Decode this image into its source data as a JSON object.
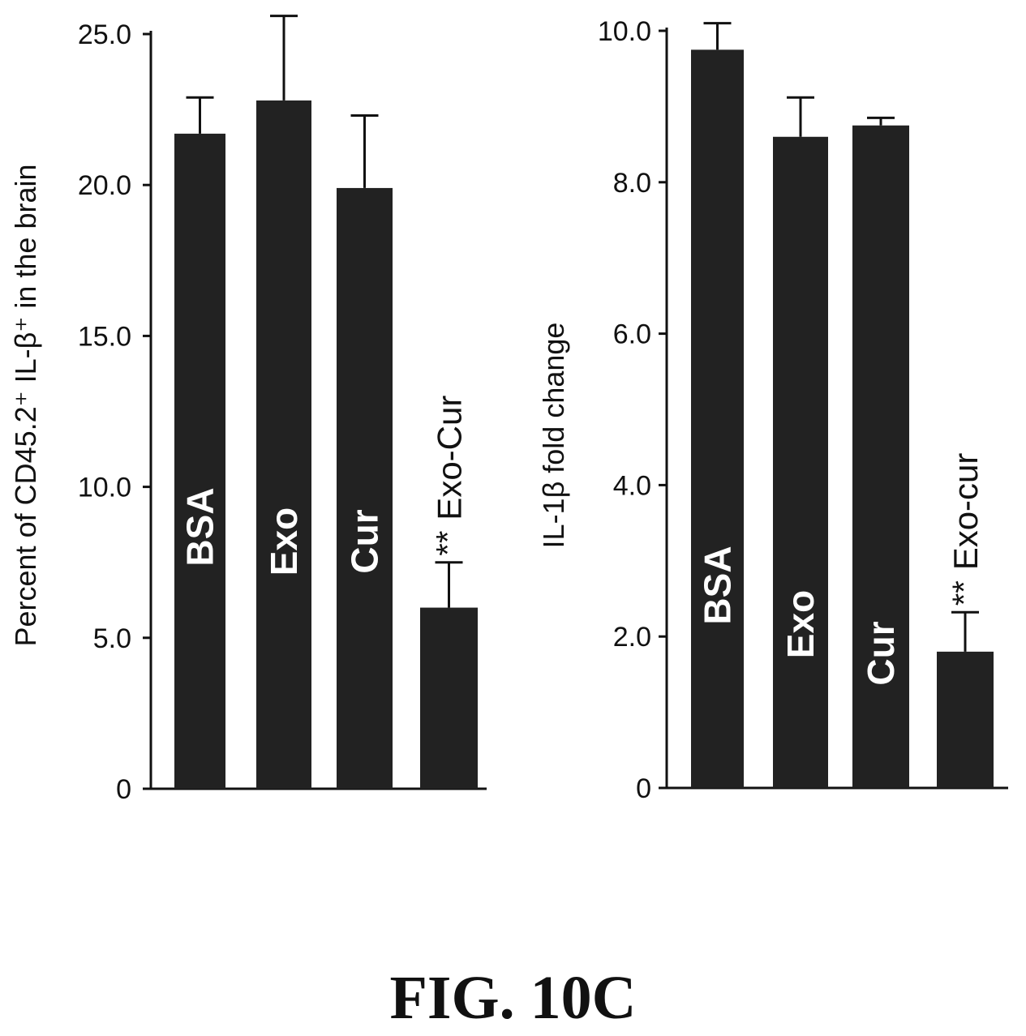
{
  "figure_label": "FIG. 10C",
  "chart_data": [
    {
      "type": "bar",
      "ylabel": "Percent of CD45.2⁺ IL-β⁺ in the brain",
      "ylim": [
        0,
        25
      ],
      "yticks": [
        "0",
        "5.0",
        "10.0",
        "15.0",
        "20.0",
        "25.0"
      ],
      "ytick_values": [
        0,
        5,
        10,
        15,
        20,
        25
      ],
      "categories": [
        "BSA",
        "Exo",
        "Cur",
        "Exo-Cur"
      ],
      "values": [
        21.7,
        22.8,
        19.9,
        6.0
      ],
      "errors": [
        1.2,
        2.8,
        2.4,
        1.5
      ],
      "annotations": [
        "",
        "",
        "",
        "**"
      ],
      "label_inside": [
        true,
        true,
        true,
        false
      ],
      "bar_color": "#222222"
    },
    {
      "type": "bar",
      "ylabel": "IL-1β  fold change",
      "ylim": [
        0,
        10
      ],
      "yticks": [
        "0",
        "2.0",
        "4.0",
        "6.0",
        "8.0",
        "10.0"
      ],
      "ytick_values": [
        0,
        2,
        4,
        6,
        8,
        10
      ],
      "categories": [
        "BSA",
        "Exo",
        "Cur",
        "Exo-cur"
      ],
      "values": [
        9.75,
        8.6,
        8.75,
        1.8
      ],
      "errors": [
        0.35,
        0.52,
        0.1,
        0.52
      ],
      "annotations": [
        "",
        "",
        "",
        "**"
      ],
      "label_inside": [
        true,
        true,
        true,
        false
      ],
      "bar_color": "#222222"
    }
  ]
}
